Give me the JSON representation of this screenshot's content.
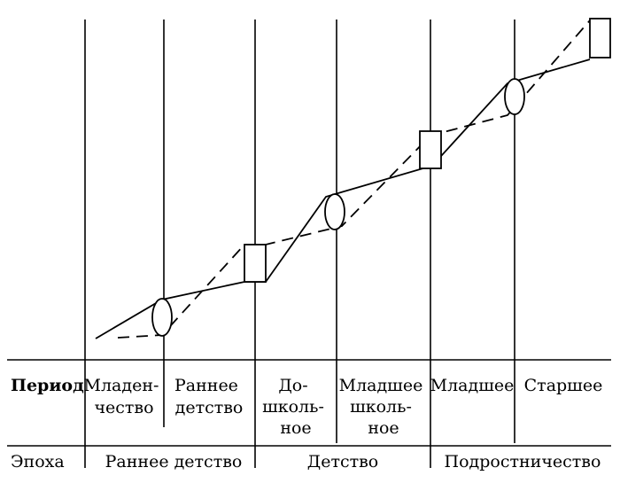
{
  "table": {
    "period_label": "Период",
    "epoch_label": "Эпоха",
    "periods": [
      {
        "lines": [
          "Младен-",
          "чество"
        ]
      },
      {
        "lines": [
          "Раннее",
          "детство"
        ]
      },
      {
        "lines": [
          "До-",
          "школь-",
          "ное"
        ]
      },
      {
        "lines": [
          "Младшее",
          "школь-",
          "ное"
        ]
      },
      {
        "lines": [
          "Младшее"
        ]
      },
      {
        "lines": [
          "Старшее"
        ]
      }
    ],
    "epochs": [
      {
        "label": "Раннее детство"
      },
      {
        "label": "Детство"
      },
      {
        "label": "Подростничество"
      }
    ]
  },
  "diagram": {
    "transition_markers": [
      "ellipse",
      "rect",
      "ellipse",
      "rect",
      "ellipse",
      "rect"
    ]
  }
}
